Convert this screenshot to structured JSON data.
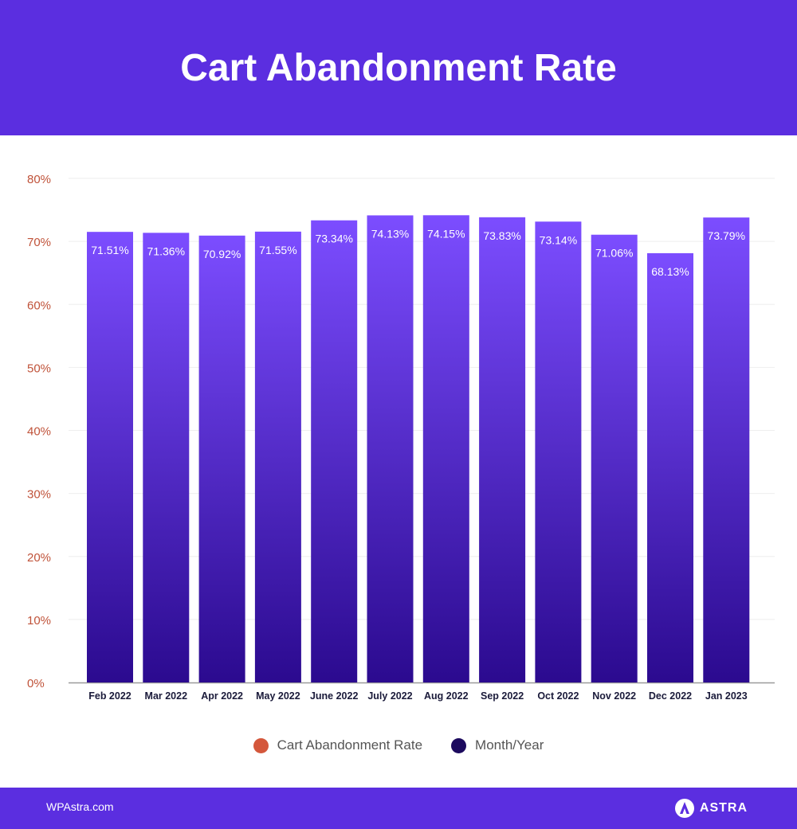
{
  "title": "Cart Abandonment Rate",
  "legend": {
    "items": [
      {
        "label": "Cart Abandonment Rate",
        "color": "#d4573b"
      },
      {
        "label": "Month/Year",
        "color": "#1c0a5e"
      }
    ]
  },
  "footer": {
    "site": "WPAstra.com",
    "brand": "ASTRA",
    "brand_icon": "astra-logo-icon"
  },
  "colors": {
    "header": "#5b2ee0",
    "bar_top": "#7c4dff",
    "bar_bottom": "#2b0a8f",
    "axis_label": "#c0533a",
    "tick_label": "#1a1a3a"
  },
  "chart_data": {
    "type": "bar",
    "categories": [
      "Feb 2022",
      "Mar 2022",
      "Apr 2022",
      "May 2022",
      "June 2022",
      "July 2022",
      "Aug 2022",
      "Sep 2022",
      "Oct 2022",
      "Nov 2022",
      "Dec 2022",
      "Jan 2023"
    ],
    "values": [
      71.51,
      71.36,
      70.92,
      71.55,
      73.34,
      74.13,
      74.15,
      73.83,
      73.14,
      71.06,
      68.13,
      73.79
    ],
    "value_labels": [
      "71.51%",
      "71.36%",
      "70.92%",
      "71.55%",
      "73.34%",
      "74.13%",
      "74.15%",
      "73.83%",
      "73.14%",
      "71.06%",
      "68.13%",
      "73.79%"
    ],
    "y_ticks": [
      0,
      10,
      20,
      30,
      40,
      50,
      60,
      70,
      80
    ],
    "y_tick_labels": [
      "0%",
      "10%",
      "20%",
      "30%",
      "40%",
      "50%",
      "60%",
      "70%",
      "80%"
    ],
    "ylim": [
      0,
      80
    ],
    "grid": true
  }
}
